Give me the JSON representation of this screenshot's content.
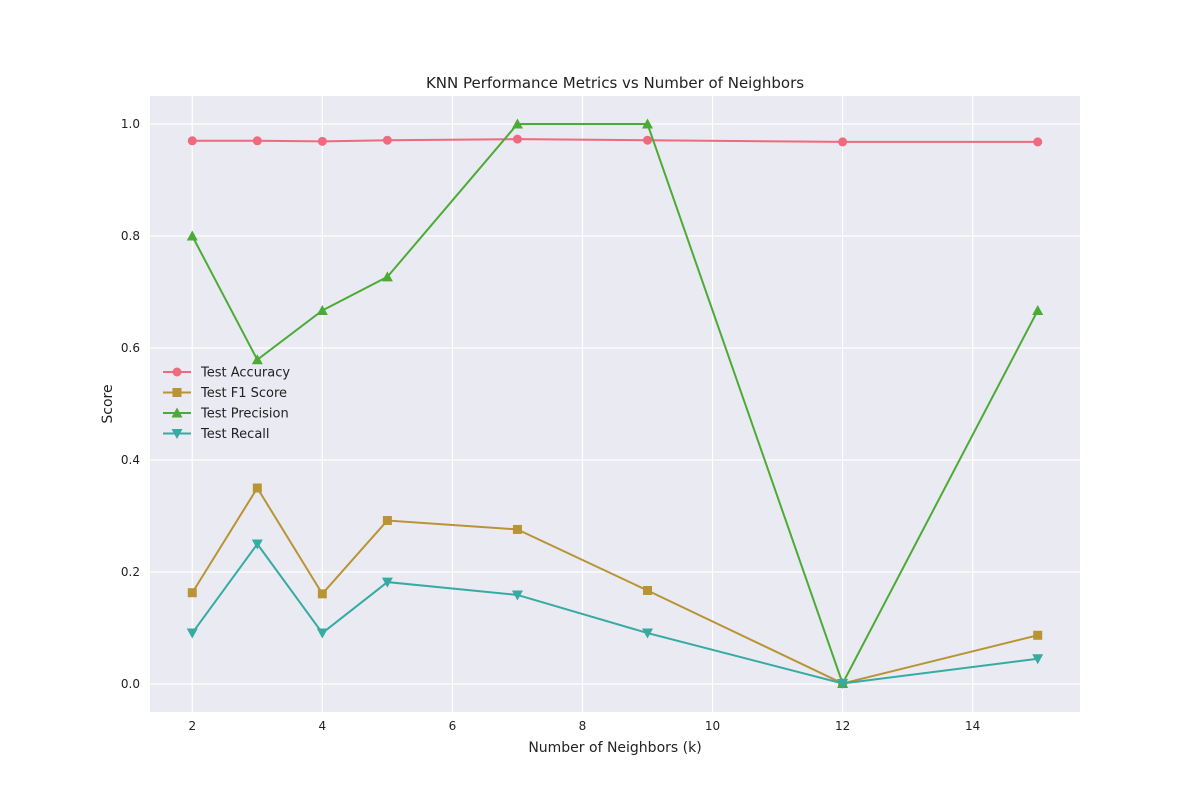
{
  "chart_data": {
    "type": "line",
    "title": "KNN Performance Metrics vs Number of Neighbors",
    "xlabel": "Number of Neighbors (k)",
    "ylabel": "Score",
    "x": [
      2,
      3,
      4,
      5,
      7,
      9,
      12,
      15
    ],
    "xlim": [
      1.35,
      15.65
    ],
    "ylim": [
      -0.05,
      1.05
    ],
    "xticks": [
      "2",
      "4",
      "6",
      "8",
      "10",
      "12",
      "14"
    ],
    "yticks": [
      "0.0",
      "0.2",
      "0.4",
      "0.6",
      "0.8",
      "1.0"
    ],
    "grid": true,
    "legend_position": "center-left",
    "series": [
      {
        "name": "Test Accuracy",
        "color": "#f0697c",
        "marker": "circle",
        "values": [
          0.97,
          0.97,
          0.969,
          0.971,
          0.973,
          0.971,
          0.968,
          0.968
        ]
      },
      {
        "name": "Test F1 Score",
        "color": "#b89434",
        "marker": "square",
        "values": [
          0.163,
          0.35,
          0.161,
          0.292,
          0.276,
          0.167,
          0.001,
          0.087
        ]
      },
      {
        "name": "Test Precision",
        "color": "#4cab35",
        "marker": "triangle-up",
        "values": [
          0.8,
          0.579,
          0.667,
          0.727,
          1.0,
          1.0,
          0.001,
          0.667
        ]
      },
      {
        "name": "Test Recall",
        "color": "#36aba2",
        "marker": "triangle-down",
        "values": [
          0.091,
          0.25,
          0.091,
          0.182,
          0.159,
          0.091,
          0.001,
          0.045
        ]
      }
    ]
  }
}
